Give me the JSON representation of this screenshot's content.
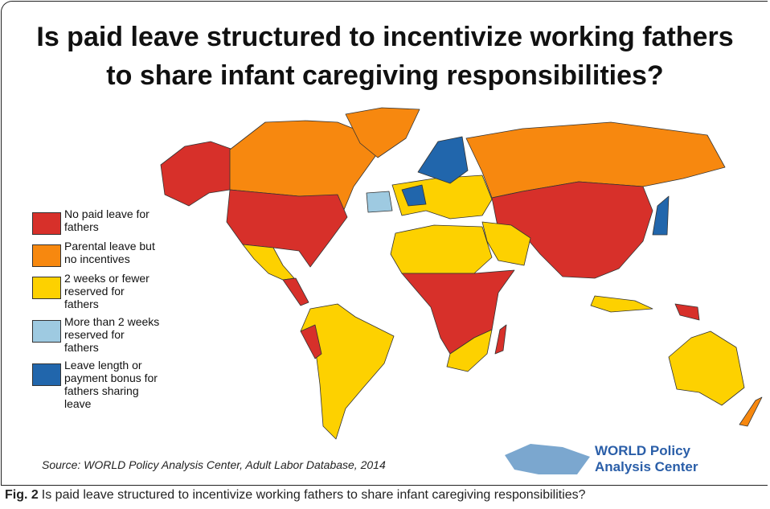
{
  "header": {
    "title_lines": [
      "Is paid leave structured to incentivize working fathers",
      "to share infant caregiving responsibilities?"
    ]
  },
  "legend": {
    "items": [
      {
        "label": "No paid leave for fathers",
        "color": "#d7302a"
      },
      {
        "label": "Parental leave but no incentives",
        "color": "#f7880f"
      },
      {
        "label": "2 weeks or fewer reserved for fathers",
        "color": "#fdd100"
      },
      {
        "label": "More than 2 weeks reserved for fathers",
        "color": "#9ecae1"
      },
      {
        "label": "Leave length or payment bonus for fathers sharing leave",
        "color": "#2166ac"
      }
    ]
  },
  "source": "Source: WORLD Policy Analysis Center, Adult Labor Database, 2014",
  "logo": {
    "lines": [
      "WORLD Policy",
      "Analysis Center"
    ]
  },
  "caption": {
    "label": "Fig. 2",
    "text": "Is paid leave structured to incentivize working fathers to share infant caregiving responsibilities?"
  }
}
